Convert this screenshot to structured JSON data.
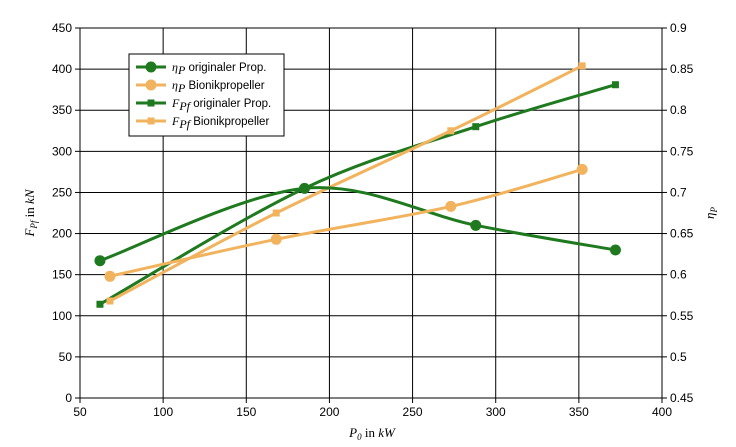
{
  "chart_data": {
    "type": "line",
    "x_axis": {
      "label": "P0 in kW",
      "label_main": "P",
      "label_sub": "0",
      "label_rest": " in ",
      "label_unit": "kW",
      "range": [
        50,
        400
      ],
      "ticks": [
        "50",
        "100",
        "150",
        "200",
        "250",
        "300",
        "350",
        "400"
      ]
    },
    "y_left": {
      "label_main": "F",
      "label_sub": "Pf",
      "label_rest": " in ",
      "label_unit": "kN",
      "range": [
        0,
        450
      ],
      "ticks": [
        "0",
        "50",
        "100",
        "150",
        "200",
        "250",
        "300",
        "350",
        "400",
        "450"
      ]
    },
    "y_right": {
      "label_main": "η",
      "label_sub": "P",
      "range": [
        0.45,
        0.9
      ],
      "ticks": [
        "0.45",
        "0.5",
        "0.55",
        "0.6",
        "0.65",
        "0.7",
        "0.75",
        "0.8",
        "0.85",
        "0.9"
      ]
    },
    "grid": true,
    "legend_position": "top-left",
    "series": [
      {
        "name": "originaler Prop.",
        "sym": "η",
        "sub": "P",
        "axis": "right",
        "color": "#1f7a1f",
        "marker": "circle",
        "width": 3,
        "x": [
          62,
          185,
          288,
          372
        ],
        "y": [
          0.617,
          0.705,
          0.66,
          0.63
        ]
      },
      {
        "name": "Bionikpropeller",
        "sym": "η",
        "sub": "P",
        "axis": "right",
        "color": "#f2b35e",
        "marker": "circle",
        "width": 3,
        "x": [
          68,
          168,
          273,
          352
        ],
        "y": [
          0.598,
          0.643,
          0.683,
          0.728
        ]
      },
      {
        "name": "originaler Prop.",
        "sym": "F",
        "sub": "Pf",
        "axis": "left",
        "color": "#1f7a1f",
        "marker": "square",
        "width": 3,
        "x": [
          62,
          185,
          288,
          372
        ],
        "y": [
          114,
          255,
          330,
          381
        ]
      },
      {
        "name": "Bionikpropeller",
        "sym": "F",
        "sub": "Pf",
        "axis": "left",
        "color": "#f2b35e",
        "marker": "square",
        "width": 3,
        "x": [
          68,
          168,
          273,
          352
        ],
        "y": [
          118,
          225,
          325,
          404
        ]
      }
    ]
  }
}
